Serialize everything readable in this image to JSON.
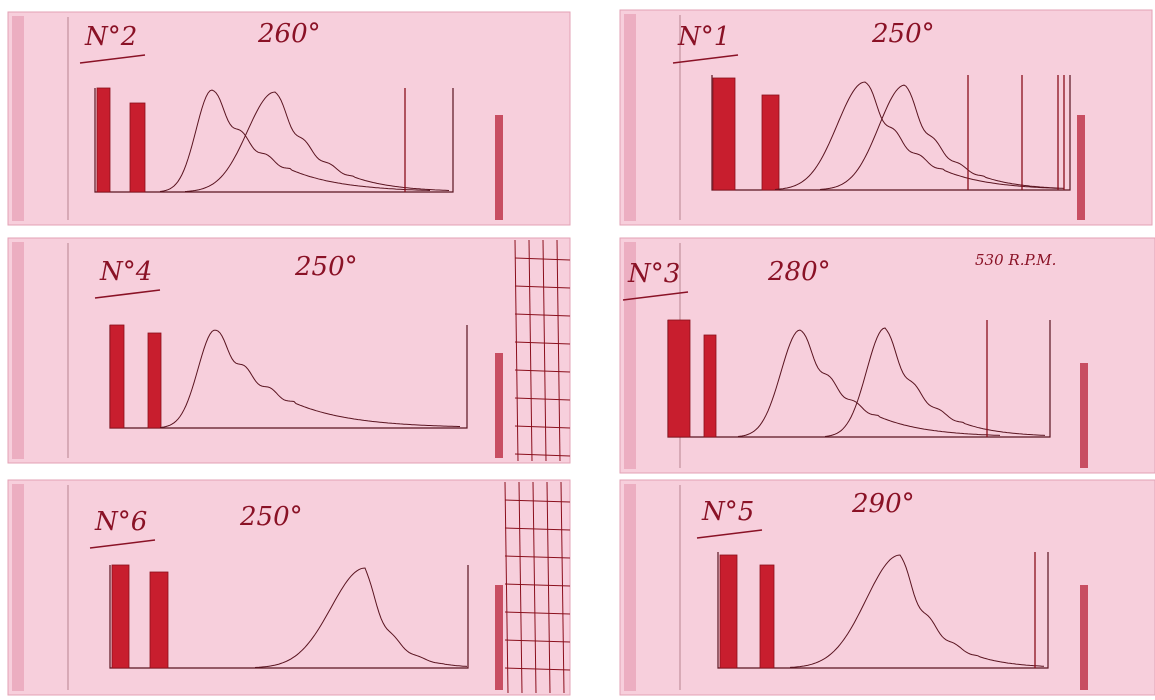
{
  "panels": [
    {
      "label": "N°2",
      "temperature": "260°"
    },
    {
      "label": "N°1",
      "temperature": "250°"
    },
    {
      "label": "N°4",
      "temperature": "250°"
    },
    {
      "label": "N°3",
      "temperature": "280°",
      "note": "530 R.P.M."
    },
    {
      "label": "N°6",
      "temperature": "250°"
    },
    {
      "label": "N°5",
      "temperature": "290°"
    }
  ]
}
